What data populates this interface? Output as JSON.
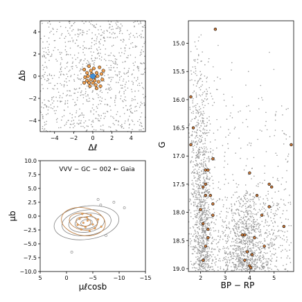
{
  "chart_data": [
    {
      "type": "scatter",
      "panel": "top-left",
      "xlabel": "Δℓ",
      "ylabel": "Δb",
      "xlim": [
        -5.5,
        5.5
      ],
      "ylim": [
        -5,
        5
      ],
      "xticks": [
        "−4",
        "−2",
        "0",
        "2",
        "4"
      ],
      "yticks": [
        "−4",
        "−2",
        "0",
        "2",
        "4"
      ],
      "grid": false,
      "field_stars": {
        "count": 900,
        "color": "#9a9a9a",
        "xrange": [
          -5.5,
          5.5
        ],
        "yrange": [
          -5,
          5
        ]
      },
      "members": {
        "color": "#f0a050",
        "points": [
          [
            -0.9,
            0.6
          ],
          [
            -0.6,
            0.3
          ],
          [
            -0.4,
            0.9
          ],
          [
            -0.2,
            0.5
          ],
          [
            0.1,
            0.7
          ],
          [
            0.4,
            0.3
          ],
          [
            0.7,
            0.8
          ],
          [
            0.9,
            0.2
          ],
          [
            1.0,
            -0.3
          ],
          [
            0.6,
            -0.5
          ],
          [
            0.3,
            -0.8
          ],
          [
            0.0,
            -0.6
          ],
          [
            -0.3,
            -0.9
          ],
          [
            -0.6,
            -0.4
          ],
          [
            -0.8,
            -0.1
          ],
          [
            -0.5,
            0.0
          ],
          [
            0.2,
            -0.1
          ],
          [
            0.5,
            0.0
          ],
          [
            -0.1,
            0.2
          ],
          [
            0.8,
            -0.9
          ],
          [
            -0.4,
            -0.6
          ],
          [
            0.4,
            -1.1
          ],
          [
            0.2,
            -0.4
          ],
          [
            -0.9,
            -0.6
          ],
          [
            1.1,
            0.5
          ],
          [
            -0.2,
            -0.3
          ]
        ]
      },
      "center": {
        "x": 0,
        "y": 0,
        "color": "#3d8fd9"
      }
    },
    {
      "type": "scatter",
      "panel": "bottom-left",
      "xlabel": "μℓcosb",
      "ylabel": "μb",
      "xlim": [
        5,
        -15
      ],
      "ylim": [
        -10,
        10
      ],
      "xticks": [
        "5",
        "0",
        "−5",
        "−10",
        "−15"
      ],
      "yticks": [
        "−10.0",
        "−7.5",
        "−5.0",
        "−2.5",
        "0.0",
        "2.5",
        "5.0",
        "7.5",
        "10.0"
      ],
      "annotation": "VVV − GC − 002  ←  Gaia",
      "contour_color": "#808080",
      "contour_center": [
        -3.8,
        -1.2
      ],
      "contour_levels": [
        {
          "rx": 6.2,
          "ry": 3.0
        },
        {
          "rx": 4.7,
          "ry": 2.3
        },
        {
          "rx": 3.4,
          "ry": 1.7
        },
        {
          "rx": 2.2,
          "ry": 1.1
        },
        {
          "rx": 1.1,
          "ry": 0.6
        }
      ],
      "member_contour_color": "#c0844a",
      "member_contour_center": [
        -3.2,
        -1.0
      ],
      "member_contour_levels": [
        {
          "rx": 4.2,
          "ry": 2.5
        },
        {
          "rx": 2.7,
          "ry": 1.5
        },
        {
          "rx": 1.4,
          "ry": 0.8
        }
      ],
      "outliers": [
        [
          -6.0,
          3.0
        ],
        [
          -9.0,
          2.5
        ],
        [
          -11.0,
          1.5
        ],
        [
          -6.5,
          2.0
        ],
        [
          -1.0,
          -6.5
        ],
        [
          -7.5,
          -3.5
        ]
      ],
      "members": {
        "color": "#f0a050",
        "points": [
          [
            -2.5,
            -0.5
          ],
          [
            -3.2,
            -1.2
          ],
          [
            -4.0,
            -0.8
          ],
          [
            -5.0,
            -1.5
          ],
          [
            -3.6,
            -2.0
          ],
          [
            -4.6,
            0.2
          ],
          [
            -2.1,
            -1.6
          ],
          [
            -6.0,
            -0.6
          ],
          [
            -3.0,
            0.4
          ],
          [
            -4.4,
            -2.7
          ],
          [
            -5.4,
            -2.2
          ],
          [
            -2.8,
            -2.4
          ],
          [
            -3.9,
            -0.2
          ],
          [
            -6.6,
            -1.9
          ]
        ]
      }
    },
    {
      "type": "scatter",
      "panel": "right",
      "xlabel": "BP − RP",
      "ylabel": "G",
      "xlim": [
        1.5,
        5.8
      ],
      "ylim": [
        19.05,
        14.6
      ],
      "xticks": [
        "2",
        "3",
        "4",
        "5"
      ],
      "yticks": [
        "15.0",
        "15.5",
        "16.0",
        "16.5",
        "17.0",
        "17.5",
        "18.0",
        "18.5",
        "19.0"
      ],
      "field_stars": {
        "count": 2400,
        "color": "#9a9a9a"
      },
      "members": {
        "color": "#c8783a",
        "points": [
          [
            2.6,
            14.75
          ],
          [
            1.6,
            15.95
          ],
          [
            1.7,
            16.5
          ],
          [
            1.6,
            16.8
          ],
          [
            5.7,
            16.8
          ],
          [
            2.5,
            17.05
          ],
          [
            2.2,
            17.25
          ],
          [
            2.3,
            17.25
          ],
          [
            4.0,
            17.3
          ],
          [
            2.2,
            17.5
          ],
          [
            4.8,
            17.5
          ],
          [
            4.9,
            17.55
          ],
          [
            2.1,
            17.55
          ],
          [
            2.2,
            17.7
          ],
          [
            2.4,
            17.7
          ],
          [
            4.3,
            17.7
          ],
          [
            2.5,
            17.85
          ],
          [
            4.8,
            17.9
          ],
          [
            2.0,
            17.95
          ],
          [
            2.5,
            18.05
          ],
          [
            4.5,
            18.05
          ],
          [
            2.1,
            18.2
          ],
          [
            5.4,
            18.25
          ],
          [
            2.3,
            18.3
          ],
          [
            3.7,
            18.4
          ],
          [
            3.8,
            18.4
          ],
          [
            2.3,
            18.45
          ],
          [
            4.2,
            18.45
          ],
          [
            2.2,
            18.6
          ],
          [
            4.6,
            18.6
          ],
          [
            3.9,
            18.7
          ],
          [
            4.1,
            18.75
          ],
          [
            2.1,
            18.85
          ],
          [
            3.8,
            18.85
          ],
          [
            4.0,
            18.95
          ],
          [
            4.05,
            18.98
          ]
        ]
      }
    }
  ]
}
